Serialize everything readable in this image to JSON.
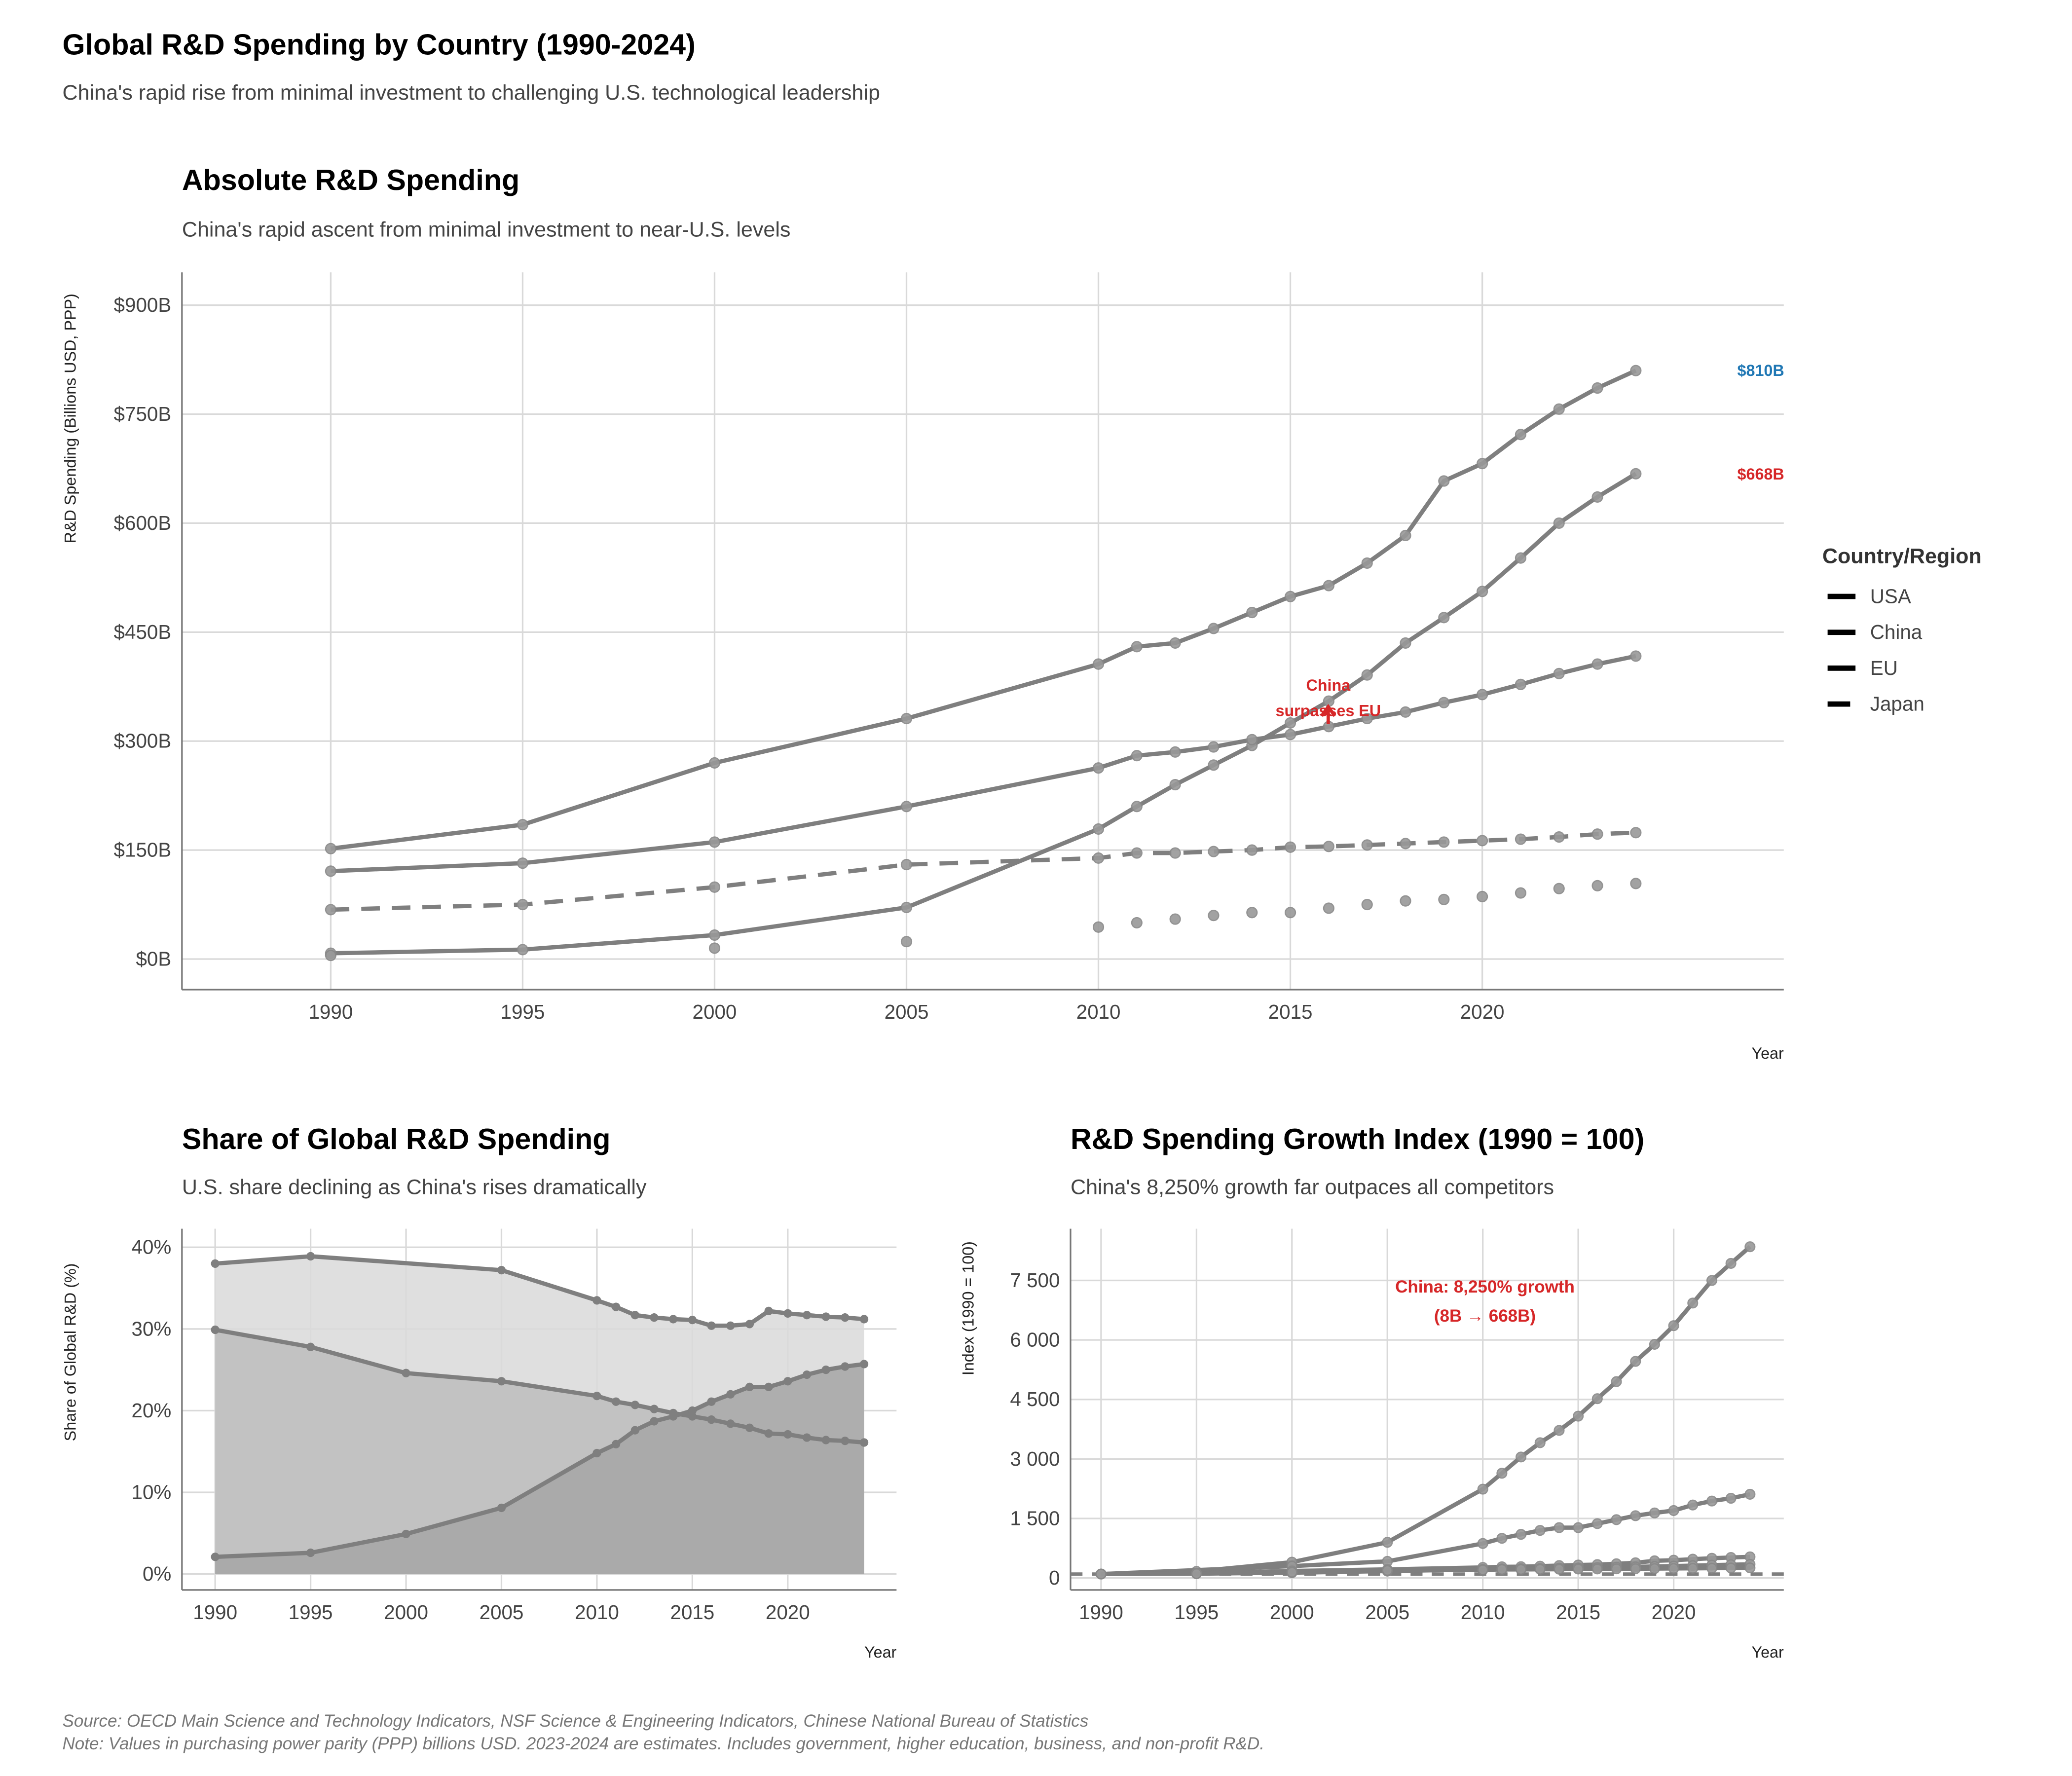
{
  "title": "Global R&D Spending by Country (1990-2024)",
  "subtitle": "China's rapid rise from minimal investment to challenging U.S. technological leadership",
  "colors": {
    "line": "#7f7f7f",
    "usa_label": "#1f77b4",
    "china_label": "#d62728",
    "annotation": "#d62728"
  },
  "legend": {
    "title": "Country/Region",
    "position": "right",
    "items": [
      {
        "label": "USA",
        "style": "solid"
      },
      {
        "label": "China",
        "style": "solid"
      },
      {
        "label": "EU",
        "style": "solid"
      },
      {
        "label": "Japan",
        "style": "dashed"
      }
    ]
  },
  "footer": {
    "source": "Source: OECD Main Science and Technology Indicators, NSF Science & Engineering Indicators, Chinese National Bureau of Statistics",
    "note": "Note: Values in purchasing power parity (PPP) billions USD. 2023-2024 are estimates. Includes government, higher education, business, and non-profit R&D."
  },
  "chart_data": [
    {
      "type": "line",
      "title": "Absolute R&D Spending",
      "subtitle": "China's rapid ascent from minimal investment to near-U.S. levels",
      "xlabel": "Year",
      "ylabel": "R&D Spending (Billions USD, PPP)",
      "xlim": [
        1986,
        2028
      ],
      "ylim": [
        -40,
        940
      ],
      "grid": true,
      "xticks": [
        1990,
        1995,
        2000,
        2005,
        2010,
        2015,
        2020
      ],
      "yticks": [
        0,
        150,
        300,
        450,
        600,
        750,
        900
      ],
      "ytick_labels": [
        "$0B",
        "$150B",
        "$300B",
        "$450B",
        "$600B",
        "$750B",
        "$900B"
      ],
      "x": [
        1990,
        1995,
        2000,
        2005,
        2010,
        2011,
        2012,
        2013,
        2014,
        2015,
        2016,
        2017,
        2018,
        2019,
        2020,
        2021,
        2022,
        2023,
        2024
      ],
      "series": [
        {
          "name": "USA",
          "style": "solid",
          "values": [
            152,
            185,
            270,
            331,
            406,
            430,
            435,
            455,
            477,
            499,
            514,
            545,
            583,
            658,
            682,
            722,
            757,
            786,
            810
          ]
        },
        {
          "name": "China",
          "style": "solid",
          "values": [
            8,
            13,
            33,
            71,
            179,
            210,
            240,
            267,
            294,
            325,
            355,
            391,
            435,
            470,
            506,
            552,
            600,
            636,
            668
          ]
        },
        {
          "name": "EU",
          "style": "solid",
          "values": [
            121,
            132,
            161,
            210,
            263,
            280,
            285,
            292,
            302,
            309,
            320,
            331,
            340,
            353,
            364,
            378,
            393,
            406,
            417
          ]
        },
        {
          "name": "Japan",
          "style": "dashed",
          "values": [
            68,
            75,
            99,
            130,
            139,
            146,
            146,
            148,
            150,
            154,
            155,
            157,
            159,
            161,
            163,
            165,
            168,
            172,
            174
          ]
        },
        {
          "style": "points",
          "x": [
            1990,
            2000,
            2005,
            2010,
            2011,
            2012,
            2013,
            2014,
            2015,
            2016,
            2017,
            2018,
            2019,
            2020,
            2021,
            2022,
            2023,
            2024
          ],
          "values": [
            5,
            15,
            24,
            44,
            50,
            55,
            60,
            64,
            64,
            70,
            75,
            80,
            82,
            86,
            91,
            97,
            101,
            104
          ]
        }
      ],
      "annotations": [
        {
          "text": "$810B",
          "x": 2024,
          "y": 810,
          "color": "#1f77b4"
        },
        {
          "text": "$668B",
          "x": 2024,
          "y": 668,
          "color": "#d62728"
        },
        {
          "text_lines": [
            "China",
            "surpasses EU"
          ],
          "x": 2016,
          "y": 320
        }
      ]
    },
    {
      "type": "area",
      "title": "Share of Global R&D Spending",
      "subtitle": "U.S. share declining as China's rises dramatically",
      "xlabel": "Year",
      "ylabel": "Share of Global R&D (%)",
      "ylim": [
        0,
        40
      ],
      "grid": true,
      "xticks": [
        1990,
        1995,
        2000,
        2005,
        2010,
        2015,
        2020
      ],
      "yticks": [
        0,
        10,
        20,
        30,
        40
      ],
      "ytick_labels": [
        "0%",
        "10%",
        "20%",
        "30%",
        "40%"
      ],
      "series": [
        {
          "x": [
            1990,
            1995,
            2005,
            2010,
            2011,
            2012,
            2013,
            2014,
            2015,
            2016,
            2017,
            2018,
            2019,
            2020,
            2021,
            2022,
            2023,
            2024
          ],
          "values": [
            38.0,
            38.9,
            37.2,
            33.5,
            32.7,
            31.7,
            31.4,
            31.2,
            31.1,
            30.4,
            30.4,
            30.6,
            32.2,
            31.9,
            31.7,
            31.5,
            31.4,
            31.2
          ],
          "fill": "#d9d9d9"
        },
        {
          "x": [
            1990,
            1995,
            2000,
            2005,
            2010,
            2011,
            2012,
            2013,
            2014,
            2015,
            2016,
            2017,
            2018,
            2019,
            2020,
            2021,
            2022,
            2023,
            2024
          ],
          "values": [
            29.9,
            27.8,
            24.6,
            23.6,
            21.8,
            21.1,
            20.7,
            20.2,
            19.7,
            19.3,
            18.9,
            18.4,
            17.9,
            17.2,
            17.1,
            16.7,
            16.4,
            16.3,
            16.1
          ],
          "fill": "#bdbdbd"
        },
        {
          "x": [
            1990,
            1995,
            2000,
            2005,
            2010,
            2011,
            2012,
            2013,
            2014,
            2015,
            2016,
            2017,
            2018,
            2019,
            2020,
            2021,
            2022,
            2023,
            2024
          ],
          "values": [
            2.1,
            2.6,
            4.9,
            8.1,
            14.8,
            15.9,
            17.6,
            18.7,
            19.3,
            20.0,
            21.1,
            22.0,
            22.9,
            22.9,
            23.6,
            24.4,
            25.0,
            25.4,
            25.7
          ],
          "fill": "#a6a6a6"
        }
      ]
    },
    {
      "type": "line",
      "title": "R&D Spending Growth Index (1990 = 100)",
      "subtitle": "China's 8,250% growth far outpaces all competitors",
      "xlabel": "Year",
      "ylabel": "Index (1990 = 100)",
      "grid": true,
      "reference_line": 100,
      "xticks": [
        1990,
        1995,
        2000,
        2005,
        2010,
        2015,
        2020
      ],
      "yticks": [
        0,
        1500,
        3000,
        4500,
        6000,
        7500
      ],
      "ytick_labels": [
        "0",
        "1 500",
        "3 000",
        "4 500",
        "6 000",
        "7 500"
      ],
      "x": [
        1990,
        1995,
        2000,
        2005,
        2010,
        2011,
        2012,
        2013,
        2014,
        2015,
        2016,
        2017,
        2018,
        2019,
        2020,
        2021,
        2022,
        2023,
        2024
      ],
      "series": [
        {
          "values": [
            100,
            167,
            400,
            900,
            2240,
            2640,
            3050,
            3410,
            3720,
            4080,
            4520,
            4950,
            5460,
            5890,
            6360,
            6930,
            7500,
            7930,
            8350
          ]
        },
        {
          "x": [
            1990,
            2000,
            2005,
            2010,
            2011,
            2012,
            2013,
            2014,
            2015,
            2016,
            2017,
            2018,
            2019,
            2020,
            2021,
            2022,
            2023,
            2024
          ],
          "values": [
            100,
            300,
            420,
            870,
            1000,
            1100,
            1200,
            1270,
            1270,
            1370,
            1470,
            1570,
            1640,
            1700,
            1840,
            1940,
            2010,
            2110
          ]
        },
        {
          "values": [
            100,
            122,
            178,
            218,
            267,
            283,
            286,
            299,
            314,
            328,
            338,
            359,
            384,
            433,
            449,
            475,
            498,
            517,
            533
          ]
        },
        {
          "values": [
            100,
            109,
            133,
            174,
            217,
            231,
            236,
            241,
            250,
            255,
            264,
            274,
            281,
            292,
            301,
            312,
            325,
            336,
            345
          ]
        },
        {
          "values": [
            100,
            110,
            146,
            191,
            204,
            215,
            215,
            218,
            221,
            226,
            228,
            231,
            234,
            237,
            240,
            243,
            247,
            253,
            256
          ]
        }
      ],
      "annotations": [
        {
          "text_lines": [
            "China: 8,250% growth",
            "(8B → 668B)"
          ],
          "x": 2010,
          "y": 7000
        }
      ]
    }
  ]
}
